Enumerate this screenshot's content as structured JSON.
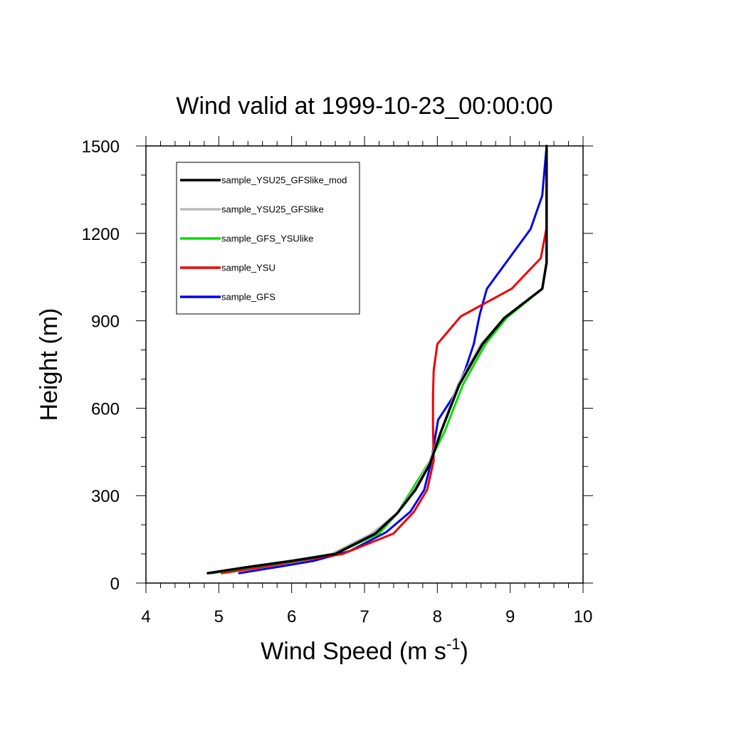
{
  "chart_data": {
    "type": "line",
    "title": "Wind valid at 1999-10-23_00:00:00",
    "xlabel": "Wind Speed (m s",
    "xlabel_superscript": "-1",
    "xlabel_close": ")",
    "ylabel": "Height (m)",
    "xlim": [
      4,
      10
    ],
    "ylim": [
      0,
      1500
    ],
    "xticks": [
      4,
      5,
      6,
      7,
      8,
      9,
      10
    ],
    "yticks": [
      0,
      300,
      600,
      900,
      1200,
      1500
    ],
    "legend_position": "top-left",
    "series": [
      {
        "name": "sample_YSU25_GFSlike_mod",
        "color": "#000000",
        "points": [
          [
            4.85,
            34
          ],
          [
            5.4,
            55
          ],
          [
            6.0,
            76
          ],
          [
            6.6,
            100
          ],
          [
            7.15,
            170
          ],
          [
            7.45,
            240
          ],
          [
            7.7,
            320
          ],
          [
            7.9,
            410
          ],
          [
            8.05,
            520
          ],
          [
            8.3,
            680
          ],
          [
            8.62,
            820
          ],
          [
            8.92,
            910
          ],
          [
            9.44,
            1010
          ],
          [
            9.5,
            1100
          ],
          [
            9.5,
            1500
          ]
        ]
      },
      {
        "name": "sample_YSU25_GFSlike",
        "color": "#bbbbbb",
        "points": [
          [
            4.85,
            34
          ],
          [
            5.4,
            55
          ],
          [
            6.0,
            76
          ],
          [
            6.55,
            100
          ],
          [
            7.1,
            170
          ],
          [
            7.45,
            240
          ],
          [
            7.68,
            320
          ],
          [
            7.88,
            410
          ],
          [
            8.05,
            520
          ],
          [
            8.28,
            680
          ],
          [
            8.6,
            820
          ],
          [
            8.92,
            910
          ],
          [
            9.44,
            1010
          ],
          [
            9.5,
            1100
          ],
          [
            9.5,
            1500
          ]
        ]
      },
      {
        "name": "sample_GFS_YSUlike",
        "color": "#00dd00",
        "points": [
          [
            4.9,
            34
          ],
          [
            5.45,
            55
          ],
          [
            6.05,
            76
          ],
          [
            6.6,
            100
          ],
          [
            7.2,
            170
          ],
          [
            7.45,
            240
          ],
          [
            7.65,
            320
          ],
          [
            7.9,
            420
          ],
          [
            8.1,
            520
          ],
          [
            8.35,
            680
          ],
          [
            8.66,
            820
          ],
          [
            8.95,
            910
          ],
          [
            9.44,
            1010
          ],
          [
            9.5,
            1100
          ],
          [
            9.5,
            1500
          ]
        ]
      },
      {
        "name": "sample_YSU",
        "color": "#ee0000",
        "points": [
          [
            5.04,
            34
          ],
          [
            5.6,
            55
          ],
          [
            6.1,
            76
          ],
          [
            6.7,
            100
          ],
          [
            7.4,
            170
          ],
          [
            7.68,
            245
          ],
          [
            7.86,
            320
          ],
          [
            7.95,
            420
          ],
          [
            7.94,
            540
          ],
          [
            7.94,
            640
          ],
          [
            7.95,
            730
          ],
          [
            8.0,
            820
          ],
          [
            8.32,
            915
          ],
          [
            9.02,
            1010
          ],
          [
            9.42,
            1115
          ],
          [
            9.5,
            1220
          ],
          [
            9.5,
            1500
          ]
        ]
      },
      {
        "name": "sample_GFS",
        "color": "#0000ee",
        "points": [
          [
            5.28,
            34
          ],
          [
            5.8,
            55
          ],
          [
            6.3,
            76
          ],
          [
            6.8,
            110
          ],
          [
            7.3,
            175
          ],
          [
            7.63,
            245
          ],
          [
            7.82,
            320
          ],
          [
            7.91,
            410
          ],
          [
            8.01,
            560
          ],
          [
            8.22,
            640
          ],
          [
            8.38,
            730
          ],
          [
            8.5,
            820
          ],
          [
            8.58,
            920
          ],
          [
            8.68,
            1010
          ],
          [
            9.28,
            1215
          ],
          [
            9.44,
            1330
          ],
          [
            9.5,
            1500
          ]
        ]
      }
    ]
  }
}
